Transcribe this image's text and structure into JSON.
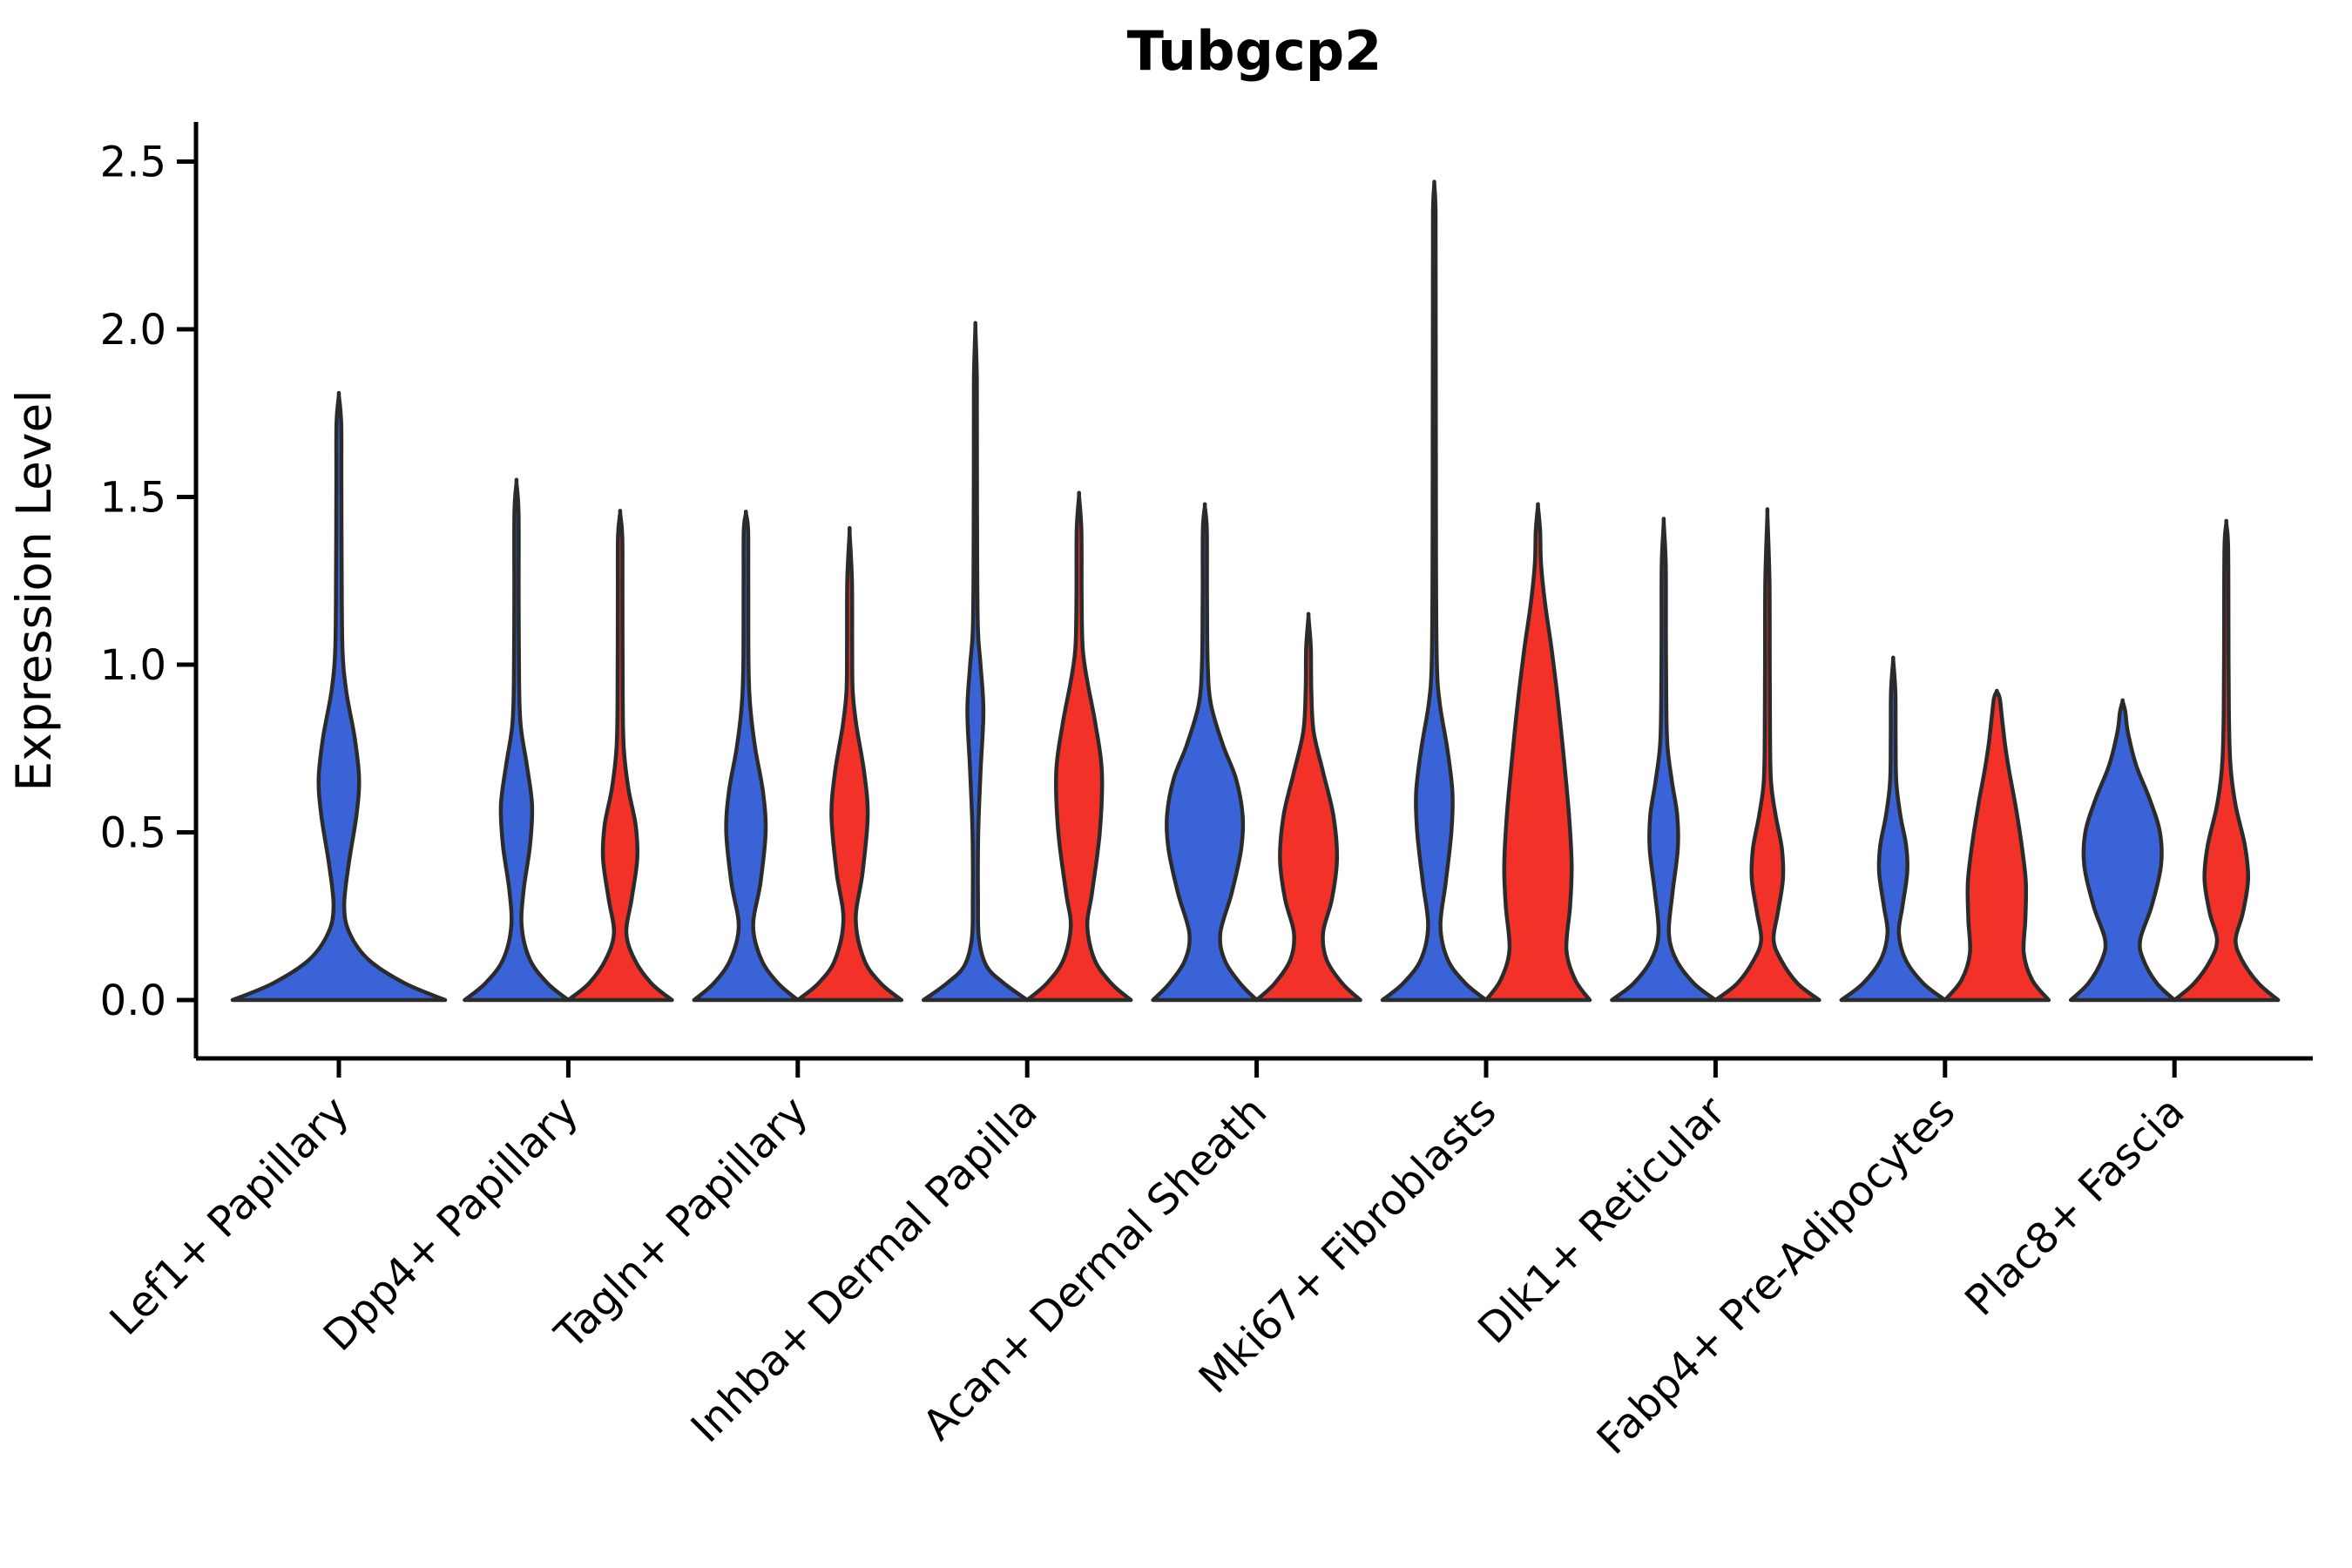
{
  "title": "Tubgcp2",
  "axes": {
    "ylabel": "Expression Level",
    "ytick_labels": [
      "0.0",
      "0.5",
      "1.0",
      "1.5",
      "2.0",
      "2.5"
    ],
    "categories": [
      "Lef1+ Papillary",
      "Dpp4+ Papillary",
      "Tagln+ Papillary",
      "Inhba+ Dermal Papilla",
      "Acan+ Dermal Sheath",
      "Mki67+ Fibroblasts",
      "Dlk1+ Reticular",
      "Fabp4+ Pre-Adipocytes",
      "Plac8+ Fascia"
    ]
  },
  "colors": {
    "blue": "#3b63d8",
    "red": "#f23229",
    "outline": "#2b2b2b",
    "axis": "#000000",
    "text": "#000000",
    "background": "#ffffff"
  },
  "chart_data": {
    "type": "violin",
    "title": "Tubgcp2",
    "xlabel": "",
    "ylabel": "Expression Level",
    "ylim": [
      -0.18,
      2.58
    ],
    "yticks": [
      0.0,
      0.5,
      1.0,
      1.5,
      2.0,
      2.5
    ],
    "grid": false,
    "legend": "none",
    "x_tick_rotation": 45,
    "categories": [
      "Lef1+ Papillary",
      "Dpp4+ Papillary",
      "Tagln+ Papillary",
      "Inhba+ Dermal Papilla",
      "Acan+ Dermal Sheath",
      "Mki67+ Fibroblasts",
      "Dlk1+ Reticular",
      "Fabp4+ Pre-Adipocytes",
      "Plac8+ Fascia"
    ],
    "series": [
      {
        "name": "blue",
        "color": "#3b63d8",
        "max_expression": [
          1.8,
          1.54,
          1.45,
          2.0,
          1.47,
          2.43,
          1.42,
          1.01,
          0.89
        ],
        "mode_expression": [
          0.66,
          0.57,
          0.52,
          0.86,
          0.55,
          0.62,
          0.48,
          0.4,
          0.45
        ]
      },
      {
        "name": "red",
        "color": "#f23229",
        "max_expression": [
          null,
          1.45,
          1.39,
          1.5,
          1.14,
          1.47,
          1.44,
          0.92,
          1.42
        ],
        "mode_expression": [
          null,
          0.44,
          0.57,
          0.68,
          0.44,
          0.38,
          0.38,
          0.32,
          0.38
        ]
      }
    ],
    "violins": [
      {
        "category": "Lef1+ Papillary",
        "series": "blue",
        "single": true,
        "max": 1.8,
        "profile": [
          [
            0,
            1
          ],
          [
            0.05,
            0.62
          ],
          [
            0.12,
            0.28
          ],
          [
            0.2,
            0.1
          ],
          [
            0.28,
            0.05
          ],
          [
            0.4,
            0.09
          ],
          [
            0.55,
            0.165
          ],
          [
            0.66,
            0.19
          ],
          [
            0.78,
            0.15
          ],
          [
            0.92,
            0.07
          ],
          [
            1.05,
            0.034
          ],
          [
            1.3,
            0.026
          ],
          [
            1.55,
            0.024
          ],
          [
            1.72,
            0.022
          ],
          [
            1.8,
            0.001
          ]
        ]
      },
      {
        "category": "Dpp4+ Papillary",
        "series": "blue",
        "single": false,
        "max": 1.54,
        "profile": [
          [
            0,
            1
          ],
          [
            0.05,
            0.6
          ],
          [
            0.12,
            0.26
          ],
          [
            0.22,
            0.1
          ],
          [
            0.33,
            0.14
          ],
          [
            0.46,
            0.26
          ],
          [
            0.58,
            0.3
          ],
          [
            0.7,
            0.2
          ],
          [
            0.82,
            0.08
          ],
          [
            0.95,
            0.05
          ],
          [
            1.2,
            0.042
          ],
          [
            1.45,
            0.04
          ],
          [
            1.54,
            0.001
          ]
        ]
      },
      {
        "category": "Dpp4+ Papillary",
        "series": "red",
        "single": false,
        "max": 1.45,
        "profile": [
          [
            0,
            1
          ],
          [
            0.05,
            0.6
          ],
          [
            0.12,
            0.28
          ],
          [
            0.2,
            0.12
          ],
          [
            0.3,
            0.22
          ],
          [
            0.42,
            0.33
          ],
          [
            0.52,
            0.3
          ],
          [
            0.63,
            0.16
          ],
          [
            0.75,
            0.07
          ],
          [
            0.9,
            0.05
          ],
          [
            1.2,
            0.045
          ],
          [
            1.38,
            0.042
          ],
          [
            1.45,
            0.001
          ]
        ]
      },
      {
        "category": "Tagln+ Papillary",
        "series": "blue",
        "single": false,
        "max": 1.45,
        "profile": [
          [
            0,
            1
          ],
          [
            0.05,
            0.62
          ],
          [
            0.12,
            0.3
          ],
          [
            0.22,
            0.14
          ],
          [
            0.35,
            0.28
          ],
          [
            0.5,
            0.38
          ],
          [
            0.62,
            0.33
          ],
          [
            0.75,
            0.18
          ],
          [
            0.88,
            0.08
          ],
          [
            1.0,
            0.05
          ],
          [
            1.25,
            0.045
          ],
          [
            1.4,
            0.042
          ],
          [
            1.45,
            0.001
          ]
        ]
      },
      {
        "category": "Tagln+ Papillary",
        "series": "red",
        "single": false,
        "max": 1.39,
        "profile": [
          [
            0,
            1
          ],
          [
            0.05,
            0.6
          ],
          [
            0.12,
            0.28
          ],
          [
            0.24,
            0.12
          ],
          [
            0.38,
            0.25
          ],
          [
            0.55,
            0.35
          ],
          [
            0.68,
            0.28
          ],
          [
            0.82,
            0.13
          ],
          [
            0.92,
            0.06
          ],
          [
            1.05,
            0.05
          ],
          [
            1.25,
            0.045
          ],
          [
            1.39,
            0.001
          ]
        ]
      },
      {
        "category": "Inhba+ Dermal Papilla",
        "series": "blue",
        "single": false,
        "max": 2.0,
        "profile": [
          [
            0,
            1
          ],
          [
            0.05,
            0.55
          ],
          [
            0.1,
            0.22
          ],
          [
            0.18,
            0.07
          ],
          [
            0.3,
            0.05
          ],
          [
            0.5,
            0.055
          ],
          [
            0.68,
            0.1
          ],
          [
            0.86,
            0.155
          ],
          [
            1.0,
            0.1
          ],
          [
            1.1,
            0.05
          ],
          [
            1.3,
            0.036
          ],
          [
            1.6,
            0.03
          ],
          [
            1.85,
            0.028
          ],
          [
            2.0,
            0.001
          ]
        ]
      },
      {
        "category": "Inhba+ Dermal Papilla",
        "series": "red",
        "single": false,
        "max": 1.5,
        "profile": [
          [
            0,
            1
          ],
          [
            0.05,
            0.62
          ],
          [
            0.12,
            0.3
          ],
          [
            0.22,
            0.16
          ],
          [
            0.32,
            0.25
          ],
          [
            0.5,
            0.4
          ],
          [
            0.68,
            0.44
          ],
          [
            0.82,
            0.32
          ],
          [
            0.95,
            0.16
          ],
          [
            1.05,
            0.07
          ],
          [
            1.2,
            0.05
          ],
          [
            1.4,
            0.045
          ],
          [
            1.5,
            0.001
          ]
        ]
      },
      {
        "category": "Acan+ Dermal Sheath",
        "series": "blue",
        "single": false,
        "max": 1.47,
        "profile": [
          [
            0,
            1
          ],
          [
            0.05,
            0.68
          ],
          [
            0.12,
            0.38
          ],
          [
            0.2,
            0.3
          ],
          [
            0.32,
            0.52
          ],
          [
            0.45,
            0.7
          ],
          [
            0.55,
            0.73
          ],
          [
            0.66,
            0.6
          ],
          [
            0.76,
            0.35
          ],
          [
            0.88,
            0.12
          ],
          [
            1.0,
            0.055
          ],
          [
            1.2,
            0.042
          ],
          [
            1.4,
            0.038
          ],
          [
            1.47,
            0.001
          ]
        ]
      },
      {
        "category": "Acan+ Dermal Sheath",
        "series": "red",
        "single": false,
        "max": 1.14,
        "profile": [
          [
            0,
            1
          ],
          [
            0.05,
            0.65
          ],
          [
            0.12,
            0.35
          ],
          [
            0.2,
            0.28
          ],
          [
            0.3,
            0.45
          ],
          [
            0.42,
            0.55
          ],
          [
            0.55,
            0.48
          ],
          [
            0.68,
            0.28
          ],
          [
            0.8,
            0.1
          ],
          [
            0.92,
            0.055
          ],
          [
            1.05,
            0.045
          ],
          [
            1.14,
            0.001
          ]
        ]
      },
      {
        "category": "Mki67+ Fibroblasts",
        "series": "blue",
        "single": false,
        "max": 2.43,
        "profile": [
          [
            0,
            1
          ],
          [
            0.05,
            0.6
          ],
          [
            0.12,
            0.26
          ],
          [
            0.22,
            0.12
          ],
          [
            0.35,
            0.22
          ],
          [
            0.5,
            0.33
          ],
          [
            0.62,
            0.35
          ],
          [
            0.75,
            0.25
          ],
          [
            0.88,
            0.11
          ],
          [
            1.0,
            0.05
          ],
          [
            1.3,
            0.034
          ],
          [
            1.7,
            0.03
          ],
          [
            2.1,
            0.027
          ],
          [
            2.35,
            0.025
          ],
          [
            2.43,
            0.001
          ]
        ]
      },
      {
        "category": "Mki67+ Fibroblasts",
        "series": "red",
        "single": false,
        "max": 1.47,
        "profile": [
          [
            0,
            1
          ],
          [
            0.06,
            0.72
          ],
          [
            0.15,
            0.55
          ],
          [
            0.28,
            0.62
          ],
          [
            0.4,
            0.65
          ],
          [
            0.55,
            0.6
          ],
          [
            0.72,
            0.5
          ],
          [
            0.9,
            0.38
          ],
          [
            1.05,
            0.26
          ],
          [
            1.18,
            0.14
          ],
          [
            1.3,
            0.06
          ],
          [
            1.4,
            0.042
          ],
          [
            1.47,
            0.001
          ]
        ]
      },
      {
        "category": "Dlk1+ Reticular",
        "series": "blue",
        "single": false,
        "max": 1.42,
        "profile": [
          [
            0,
            1
          ],
          [
            0.05,
            0.58
          ],
          [
            0.12,
            0.24
          ],
          [
            0.2,
            0.1
          ],
          [
            0.32,
            0.17
          ],
          [
            0.45,
            0.27
          ],
          [
            0.55,
            0.26
          ],
          [
            0.65,
            0.16
          ],
          [
            0.76,
            0.07
          ],
          [
            0.9,
            0.048
          ],
          [
            1.1,
            0.042
          ],
          [
            1.3,
            0.038
          ],
          [
            1.42,
            0.001
          ]
        ]
      },
      {
        "category": "Dlk1+ Reticular",
        "series": "red",
        "single": false,
        "max": 1.44,
        "profile": [
          [
            0,
            1
          ],
          [
            0.05,
            0.58
          ],
          [
            0.12,
            0.26
          ],
          [
            0.18,
            0.12
          ],
          [
            0.26,
            0.2
          ],
          [
            0.36,
            0.3
          ],
          [
            0.45,
            0.28
          ],
          [
            0.55,
            0.16
          ],
          [
            0.65,
            0.07
          ],
          [
            0.8,
            0.05
          ],
          [
            1.0,
            0.045
          ],
          [
            1.25,
            0.04
          ],
          [
            1.44,
            0.001
          ]
        ]
      },
      {
        "category": "Fabp4+ Pre-Adipocytes",
        "series": "blue",
        "single": false,
        "max": 1.01,
        "profile": [
          [
            0,
            1
          ],
          [
            0.05,
            0.58
          ],
          [
            0.12,
            0.24
          ],
          [
            0.2,
            0.11
          ],
          [
            0.28,
            0.18
          ],
          [
            0.38,
            0.27
          ],
          [
            0.46,
            0.25
          ],
          [
            0.55,
            0.14
          ],
          [
            0.65,
            0.06
          ],
          [
            0.78,
            0.047
          ],
          [
            0.92,
            0.042
          ],
          [
            1.01,
            0.001
          ]
        ]
      },
      {
        "category": "Fabp4+ Pre-Adipocytes",
        "series": "red",
        "single": false,
        "max": 0.92,
        "profile": [
          [
            0,
            1
          ],
          [
            0.06,
            0.68
          ],
          [
            0.14,
            0.52
          ],
          [
            0.24,
            0.55
          ],
          [
            0.35,
            0.56
          ],
          [
            0.46,
            0.48
          ],
          [
            0.58,
            0.36
          ],
          [
            0.68,
            0.24
          ],
          [
            0.76,
            0.16
          ],
          [
            0.84,
            0.1
          ],
          [
            0.9,
            0.055
          ],
          [
            0.92,
            0.001
          ]
        ]
      },
      {
        "category": "Plac8+ Fascia",
        "series": "blue",
        "single": false,
        "max": 0.89,
        "profile": [
          [
            0,
            1
          ],
          [
            0.05,
            0.66
          ],
          [
            0.12,
            0.4
          ],
          [
            0.18,
            0.34
          ],
          [
            0.28,
            0.56
          ],
          [
            0.4,
            0.74
          ],
          [
            0.5,
            0.72
          ],
          [
            0.6,
            0.52
          ],
          [
            0.7,
            0.26
          ],
          [
            0.8,
            0.1
          ],
          [
            0.86,
            0.05
          ],
          [
            0.89,
            0.001
          ]
        ]
      },
      {
        "category": "Plac8+ Fascia",
        "series": "red",
        "single": false,
        "max": 1.42,
        "profile": [
          [
            0,
            1
          ],
          [
            0.05,
            0.62
          ],
          [
            0.12,
            0.3
          ],
          [
            0.18,
            0.18
          ],
          [
            0.26,
            0.32
          ],
          [
            0.36,
            0.42
          ],
          [
            0.46,
            0.36
          ],
          [
            0.58,
            0.18
          ],
          [
            0.7,
            0.08
          ],
          [
            0.85,
            0.05
          ],
          [
            1.1,
            0.042
          ],
          [
            1.35,
            0.036
          ],
          [
            1.42,
            0.001
          ]
        ]
      }
    ]
  }
}
